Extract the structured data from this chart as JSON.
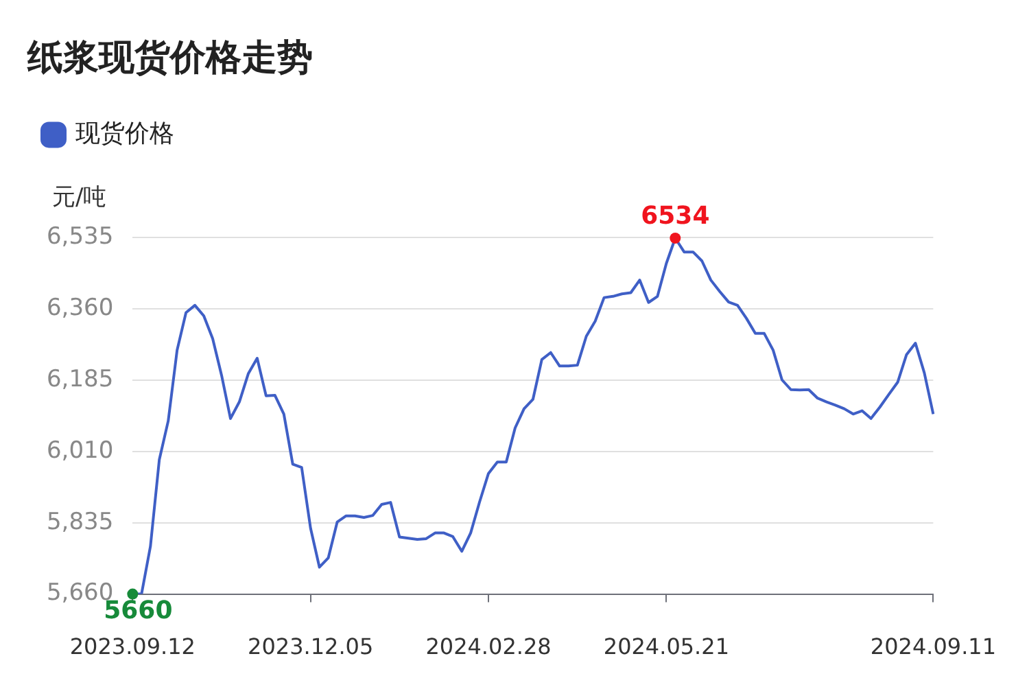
{
  "chart_data": {
    "type": "line",
    "title": "纸浆现货价格走势",
    "ylabel": "元/吨",
    "categories": [
      "2023.09.12",
      null,
      null,
      null,
      null,
      null,
      null,
      null,
      null,
      null,
      null,
      null,
      null,
      null,
      null,
      null,
      null,
      null,
      null,
      null,
      "2023.12.05",
      null,
      null,
      null,
      null,
      null,
      null,
      null,
      null,
      null,
      null,
      null,
      null,
      null,
      null,
      null,
      null,
      null,
      null,
      null,
      "2024.02.28",
      null,
      null,
      null,
      null,
      null,
      null,
      null,
      null,
      null,
      null,
      null,
      null,
      null,
      null,
      null,
      null,
      null,
      null,
      null,
      "2024.05.21",
      null,
      null,
      null,
      null,
      null,
      null,
      null,
      null,
      null,
      null,
      null,
      null,
      null,
      null,
      null,
      null,
      null,
      null,
      null,
      null,
      null,
      null,
      null,
      null,
      null,
      null,
      null,
      null,
      null,
      "2024.09.11"
    ],
    "series": [
      {
        "name": "现货价格",
        "color": "#3f5fc6",
        "values": [
          5660,
          5660,
          5777,
          5990,
          6085,
          6259,
          6351,
          6369,
          6343,
          6287,
          6197,
          6091,
          6132,
          6201,
          6239,
          6147,
          6148,
          6102,
          5979,
          5971,
          5822,
          5726,
          5749,
          5837,
          5852,
          5852,
          5848,
          5853,
          5880,
          5885,
          5800,
          5797,
          5794,
          5796,
          5810,
          5810,
          5801,
          5765,
          5810,
          5886,
          5956,
          5984,
          5984,
          6068,
          6115,
          6138,
          6236,
          6253,
          6220,
          6220,
          6222,
          6293,
          6330,
          6388,
          6391,
          6397,
          6400,
          6431,
          6376,
          6391,
          6472,
          6534,
          6500,
          6500,
          6478,
          6431,
          6403,
          6377,
          6369,
          6337,
          6300,
          6300,
          6259,
          6186,
          6162,
          6161,
          6162,
          6141,
          6132,
          6124,
          6115,
          6102,
          6110,
          6091,
          6119,
          6150,
          6180,
          6248,
          6276,
          6203,
          6102
        ]
      }
    ],
    "ylim": [
      5660,
      6535
    ],
    "yticks": [
      {
        "value": 5660,
        "label": "5,660"
      },
      {
        "value": 5835,
        "label": "5,835"
      },
      {
        "value": 6010,
        "label": "6,010"
      },
      {
        "value": 6185,
        "label": "6,185"
      },
      {
        "value": 6360,
        "label": "6,360"
      },
      {
        "value": 6535,
        "label": "6,535"
      }
    ],
    "annotations": [
      {
        "text": "5660",
        "x": "2023.09.12",
        "y": 5660
      },
      {
        "text": "6534",
        "y": 6534
      }
    ],
    "grid": "y",
    "legend": "top left",
    "marker": "none",
    "line_style": "solid"
  }
}
